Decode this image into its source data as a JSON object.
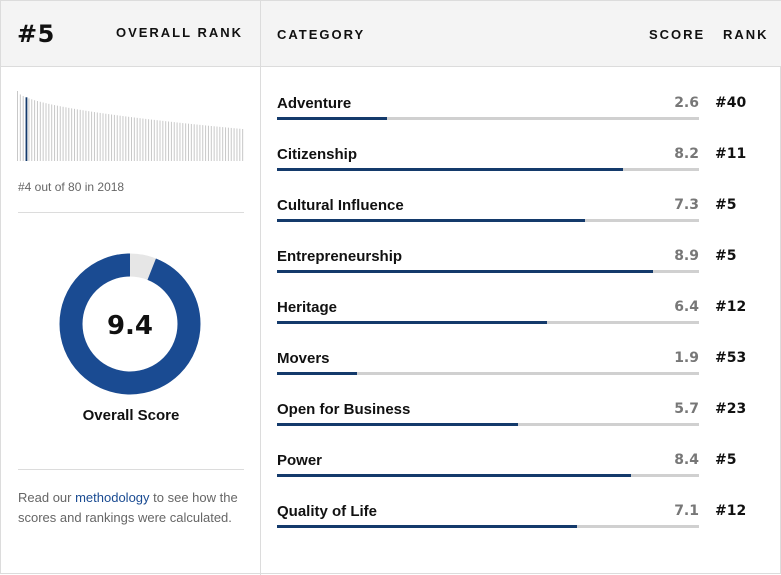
{
  "header": {
    "rank": "#5",
    "overall_rank_label": "OVERALL RANK",
    "category_label": "CATEGORY",
    "score_label": "SCORE",
    "rank_label": "RANK"
  },
  "histogram": {
    "caption": "#4 out of 80 in 2018",
    "bar_count": 80,
    "highlight_position": 4,
    "highlight_color": "#143a6b",
    "bar_color": "#c8c8c8"
  },
  "overall": {
    "score": "9.4",
    "score_value": 9.4,
    "label": "Overall Score",
    "ring_color": "#1a4b92",
    "ring_track_color": "#e6e6e6"
  },
  "methodology": {
    "prefix": "Read our ",
    "link": "methodology",
    "suffix": " to see how the scores and rankings were calculated."
  },
  "categories": [
    {
      "name": "Adventure",
      "score": "2.6",
      "rank": "#40"
    },
    {
      "name": "Citizenship",
      "score": "8.2",
      "rank": "#11"
    },
    {
      "name": "Cultural Influence",
      "score": "7.3",
      "rank": "#5"
    },
    {
      "name": "Entrepreneurship",
      "score": "8.9",
      "rank": "#5"
    },
    {
      "name": "Heritage",
      "score": "6.4",
      "rank": "#12"
    },
    {
      "name": "Movers",
      "score": "1.9",
      "rank": "#53"
    },
    {
      "name": "Open for Business",
      "score": "5.7",
      "rank": "#23"
    },
    {
      "name": "Power",
      "score": "8.4",
      "rank": "#5"
    },
    {
      "name": "Quality of Life",
      "score": "7.1",
      "rank": "#12"
    }
  ],
  "colors": {
    "bar_fill": "#143a6b",
    "bar_track": "#d0d0d0",
    "header_bg": "#f4f4f4"
  }
}
